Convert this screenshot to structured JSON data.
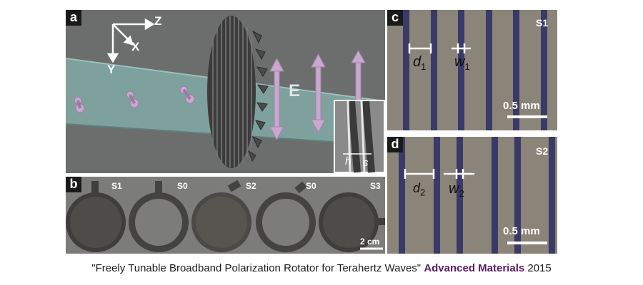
{
  "figure": {
    "panels": [
      {
        "id": "a",
        "label": "a",
        "axes": {
          "z": "Z",
          "x": "X",
          "y": "Y"
        },
        "field_label": "E",
        "inset_labels": {
          "h": "h",
          "s": "s"
        },
        "colors": {
          "background": "#6b6e6d",
          "beam": "#7fa3a0",
          "arrow": "#c9a8cf"
        }
      },
      {
        "id": "b",
        "label": "b",
        "samples": [
          "S1",
          "S0",
          "S2",
          "S0",
          "S3"
        ],
        "scale_bar": "2 cm",
        "colors": {
          "background": "#7c7c7a",
          "disk": "#3f3e3c"
        }
      },
      {
        "id": "c",
        "label": "c",
        "sample": "S1",
        "dims": {
          "d": "d",
          "d_sub": "1",
          "w": "w",
          "w_sub": "1"
        },
        "scale_bar": "0.5 mm",
        "colors": {
          "background": "#8b8478",
          "stripe": "#3a3a68"
        }
      },
      {
        "id": "d",
        "label": "d",
        "sample": "S2",
        "dims": {
          "d": "d",
          "d_sub": "2",
          "w": "w",
          "w_sub": "2"
        },
        "scale_bar": "0.5 mm",
        "colors": {
          "background": "#8b8478",
          "stripe": "#3a3a68"
        }
      }
    ]
  },
  "caption": {
    "title": "\"Freely Tunable Broadband Polarization Rotator for Terahertz Waves\"",
    "journal": "Advanced Materials",
    "year": "2015"
  }
}
